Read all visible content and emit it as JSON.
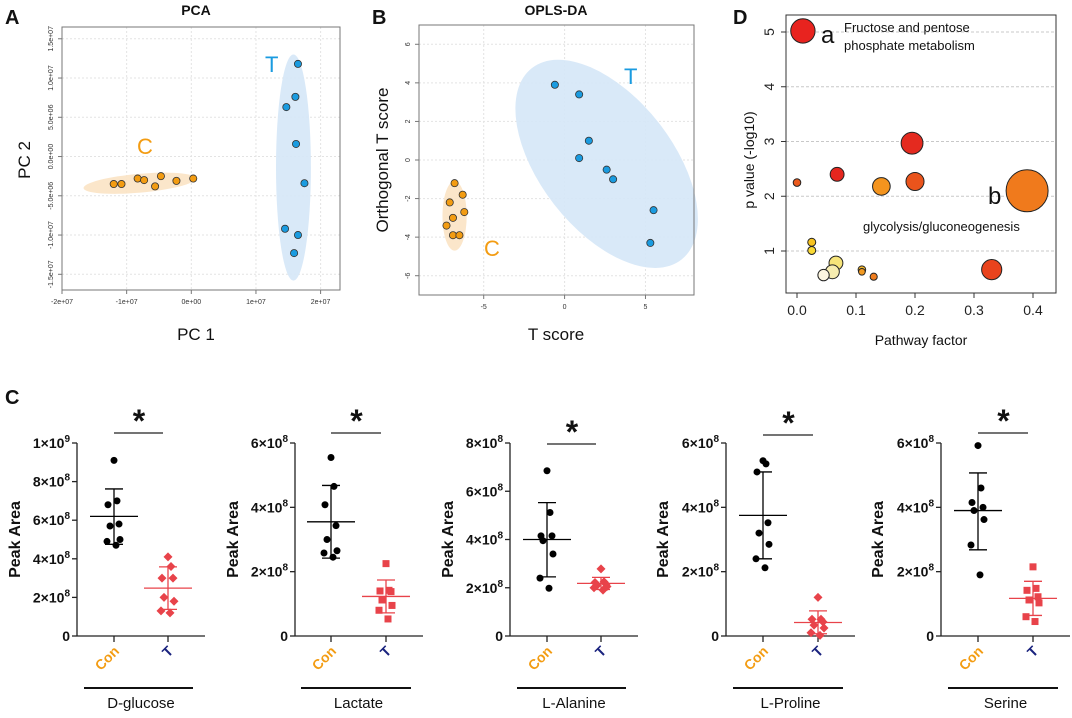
{
  "panels": {
    "A": {
      "letter": "A"
    },
    "B": {
      "letter": "B"
    },
    "C": {
      "letter": "C"
    },
    "D": {
      "letter": "D"
    }
  },
  "chart_data": [
    {
      "id": "A",
      "type": "scatter",
      "title": "PCA",
      "xlabel": "PC 1",
      "ylabel": "PC 2",
      "xlim": [
        -20000000,
        23000000
      ],
      "ylim": [
        -17000000,
        16500000
      ],
      "xticks": [
        -20000000,
        -10000000,
        0,
        10000000,
        20000000
      ],
      "xtick_labels": [
        "-2e+07",
        "-1e+07",
        "0e+00",
        "1e+07",
        "2e+07"
      ],
      "yticks": [
        15000000,
        10000000,
        5000000,
        0,
        -5000000,
        -10000000,
        -15000000
      ],
      "ytick_labels": [
        "1.5e+07",
        "1.0e+07",
        "5.0e+06",
        "0.0e+00",
        "-5.0e+06",
        "-1.0e+07",
        "-1.5e+07"
      ],
      "grid": true,
      "series": [
        {
          "name": "C",
          "color": "#f39c12",
          "ellipse_color": "#fbe3c4",
          "ellipse": {
            "cx": -8000000,
            "cy": -3400000,
            "rx": 8700000,
            "ry": 1200000,
            "angle_deg": -5
          },
          "points": [
            [
              -12000000,
              -3500000
            ],
            [
              -10800000,
              -3500000
            ],
            [
              -8300000,
              -2800000
            ],
            [
              -7300000,
              -3000000
            ],
            [
              -5600000,
              -3800000
            ],
            [
              -4700000,
              -2500000
            ],
            [
              -2300000,
              -3100000
            ],
            [
              300000,
              -2800000
            ]
          ]
        },
        {
          "name": "T",
          "color": "#1a9be0",
          "ellipse_color": "#d5e7f7",
          "ellipse": {
            "cx": 15800000,
            "cy": -1400000,
            "rx": 2700000,
            "ry": 14400000,
            "angle_deg": 0
          },
          "points": [
            [
              16500000,
              11800000
            ],
            [
              16100000,
              7600000
            ],
            [
              14700000,
              6300000
            ],
            [
              16200000,
              1600000
            ],
            [
              17500000,
              -3400000
            ],
            [
              14500000,
              -9200000
            ],
            [
              16500000,
              -10000000
            ],
            [
              15900000,
              -12300000
            ]
          ]
        }
      ]
    },
    {
      "id": "B",
      "type": "scatter",
      "title": "OPLS-DA",
      "xlabel": "T score",
      "ylabel": "Orthogonal T score",
      "xlim": [
        -9,
        8
      ],
      "ylim": [
        -7,
        7
      ],
      "xticks": [
        -5,
        0,
        5
      ],
      "xtick_labels": [
        "-5",
        "0",
        "5"
      ],
      "yticks": [
        6,
        4,
        2,
        0,
        -2,
        -4,
        -6
      ],
      "ytick_labels": [
        "6",
        "4",
        "2",
        "0",
        "-2",
        "-4",
        "-6"
      ],
      "grid": true,
      "series": [
        {
          "name": "C",
          "color": "#f39c12",
          "ellipse_color": "#fbe3c4",
          "ellipse": {
            "cx": -6.8,
            "cy": -2.9,
            "rx": 0.75,
            "ry": 1.8,
            "angle_deg": 0
          },
          "points": [
            [
              -6.8,
              -1.2
            ],
            [
              -6.3,
              -1.8
            ],
            [
              -7.1,
              -2.2
            ],
            [
              -6.2,
              -2.7
            ],
            [
              -6.9,
              -3.0
            ],
            [
              -7.3,
              -3.4
            ],
            [
              -6.9,
              -3.9
            ],
            [
              -6.5,
              -3.9
            ]
          ]
        },
        {
          "name": "T",
          "color": "#1a9be0",
          "ellipse_color": "#d5e7f7",
          "ellipse": {
            "cx": 2.6,
            "cy": -0.2,
            "rx": 4.1,
            "ry": 6.3,
            "angle_deg": -38
          },
          "points": [
            [
              -0.6,
              3.9
            ],
            [
              0.9,
              3.4
            ],
            [
              1.5,
              1.0
            ],
            [
              0.9,
              0.1
            ],
            [
              2.6,
              -0.5
            ],
            [
              3.0,
              -1.0
            ],
            [
              5.5,
              -2.6
            ],
            [
              5.3,
              -4.3
            ]
          ]
        }
      ]
    },
    {
      "id": "C",
      "type": "scatter",
      "subtype": "dot-plot-with-mean-sd",
      "ylabel": "Peak Area",
      "group_labels": [
        "Con",
        "T"
      ],
      "group_colors": {
        "Con": "#f39c12",
        "T": "#1a237e"
      },
      "point_colors": {
        "Con": "#000000",
        "T": "#e8434a"
      },
      "significance": "*",
      "plots": [
        {
          "metabolite": "D-glucose",
          "ymax": 1000000000,
          "yticks": [
            0,
            200000000,
            400000000,
            600000000,
            800000000,
            1000000000
          ],
          "ytick_labels": [
            "0",
            "2×10⁸",
            "4×10⁸",
            "6×10⁸",
            "8×10⁸",
            "1×10⁹"
          ],
          "t_marker": "diamond",
          "con": {
            "mean": 620000000,
            "sd_low": 475000000,
            "sd_high": 762000000,
            "values": [
              910000000,
              700000000,
              680000000,
              580000000,
              570000000,
              500000000,
              490000000,
              470000000
            ]
          },
          "t": {
            "mean": 248000000,
            "sd_low": 138000000,
            "sd_high": 358000000,
            "values": [
              410000000,
              360000000,
              300000000,
              300000000,
              200000000,
              180000000,
              130000000,
              120000000
            ]
          }
        },
        {
          "metabolite": "Lactate",
          "ymax": 600000000,
          "yticks": [
            0,
            200000000,
            400000000,
            600000000
          ],
          "ytick_labels": [
            "0",
            "2×10⁸",
            "4×10⁸",
            "6×10⁸"
          ],
          "t_marker": "square",
          "con": {
            "mean": 355000000,
            "sd_low": 242000000,
            "sd_high": 468000000,
            "values": [
              555000000,
              465000000,
              408000000,
              343000000,
              300000000,
              265000000,
              258000000,
              245000000
            ]
          },
          "t": {
            "mean": 123000000,
            "sd_low": 72000000,
            "sd_high": 174000000,
            "values": [
              225000000,
              142000000,
              140000000,
              138000000,
              112000000,
              95000000,
              80000000,
              53000000
            ]
          }
        },
        {
          "metabolite": "L-Alanine",
          "ymax": 800000000,
          "yticks": [
            0,
            200000000,
            400000000,
            600000000,
            800000000
          ],
          "ytick_labels": [
            "0",
            "2×10⁸",
            "4×10⁸",
            "6×10⁸",
            "8×10⁸"
          ],
          "t_marker": "diamond",
          "con": {
            "mean": 400000000,
            "sd_low": 245000000,
            "sd_high": 553000000,
            "values": [
              685000000,
              512000000,
              415000000,
              415000000,
              395000000,
              340000000,
              240000000,
              198000000
            ]
          },
          "t": {
            "mean": 218000000,
            "sd_low": 193000000,
            "sd_high": 243000000,
            "values": [
              278000000,
              225000000,
              222000000,
              215000000,
              210000000,
              205000000,
              200000000,
              190000000
            ]
          }
        },
        {
          "metabolite": "L-Proline",
          "ymax": 600000000,
          "yticks": [
            0,
            200000000,
            400000000,
            600000000
          ],
          "ytick_labels": [
            "0",
            "2×10⁸",
            "4×10⁸",
            "6×10⁸"
          ],
          "t_marker": "diamond",
          "con": {
            "mean": 375000000,
            "sd_low": 240000000,
            "sd_high": 510000000,
            "values": [
              545000000,
              535000000,
              510000000,
              352000000,
              320000000,
              285000000,
              240000000,
              212000000
            ]
          },
          "t": {
            "mean": 42000000,
            "sd_low": 7000000,
            "sd_high": 78000000,
            "values": [
              120000000,
              52000000,
              52000000,
              44000000,
              34000000,
              25000000,
              10000000,
              2000000
            ]
          }
        },
        {
          "metabolite": "Serine",
          "ymax": 600000000,
          "yticks": [
            0,
            200000000,
            400000000,
            600000000
          ],
          "ytick_labels": [
            "0",
            "2×10⁸",
            "4×10⁸",
            "6×10⁸"
          ],
          "t_marker": "square",
          "con": {
            "mean": 390000000,
            "sd_low": 268000000,
            "sd_high": 507000000,
            "values": [
              592000000,
              460000000,
              415000000,
              400000000,
              390000000,
              362000000,
              283000000,
              190000000
            ]
          },
          "t": {
            "mean": 117000000,
            "sd_low": 64000000,
            "sd_high": 170000000,
            "values": [
              215000000,
              148000000,
              142000000,
              122000000,
              112000000,
              103000000,
              60000000,
              45000000
            ]
          }
        }
      ]
    },
    {
      "id": "D",
      "type": "scatter",
      "subtype": "bubble",
      "xlabel": "Pathway factor",
      "ylabel": "p value (-log10)",
      "xlim": [
        -0.02,
        0.43
      ],
      "ylim": [
        0.25,
        5.2
      ],
      "xticks": [
        0.0,
        0.1,
        0.2,
        0.3,
        0.4
      ],
      "xtick_labels": [
        "0.0",
        "0.1",
        "0.2",
        "0.3",
        "0.4"
      ],
      "yticks": [
        1,
        2,
        3,
        4,
        5
      ],
      "ytick_labels": [
        "1",
        "2",
        "3",
        "4",
        "5"
      ],
      "grid": "horizontal-dashed",
      "annotations": [
        {
          "letter": "a",
          "text_lines": [
            "Fructose and pentose",
            "phosphate metabolism"
          ]
        },
        {
          "letter": "b",
          "text_lines": [
            "glycolysis/gluconeogenesis"
          ]
        }
      ],
      "points": [
        {
          "x": 0.01,
          "y": 5.02,
          "size": 0.58,
          "color": "#e8231f"
        },
        {
          "x": 0.195,
          "y": 2.97,
          "size": 0.52,
          "color": "#e42a1f"
        },
        {
          "x": 0.39,
          "y": 2.1,
          "size": 1.0,
          "color": "#f07a1c"
        },
        {
          "x": 0.068,
          "y": 2.4,
          "size": 0.33,
          "color": "#e5261e"
        },
        {
          "x": 0.0,
          "y": 2.25,
          "size": 0.18,
          "color": "#eb5a1d"
        },
        {
          "x": 0.143,
          "y": 2.18,
          "size": 0.42,
          "color": "#f4941e"
        },
        {
          "x": 0.2,
          "y": 2.27,
          "size": 0.43,
          "color": "#ea541c"
        },
        {
          "x": 0.33,
          "y": 0.66,
          "size": 0.48,
          "color": "#e9431d"
        },
        {
          "x": 0.025,
          "y": 1.16,
          "size": 0.19,
          "color": "#f7c320"
        },
        {
          "x": 0.025,
          "y": 1.01,
          "size": 0.19,
          "color": "#f9d935"
        },
        {
          "x": 0.066,
          "y": 0.78,
          "size": 0.33,
          "color": "#f6e47a"
        },
        {
          "x": 0.06,
          "y": 0.62,
          "size": 0.33,
          "color": "#f6ecb0"
        },
        {
          "x": 0.045,
          "y": 0.56,
          "size": 0.27,
          "color": "#fdf6e0"
        },
        {
          "x": 0.11,
          "y": 0.66,
          "size": 0.18,
          "color": "#f3b72a"
        },
        {
          "x": 0.11,
          "y": 0.62,
          "size": 0.16,
          "color": "#f29a22"
        },
        {
          "x": 0.13,
          "y": 0.53,
          "size": 0.17,
          "color": "#ef7d1e"
        }
      ]
    }
  ]
}
